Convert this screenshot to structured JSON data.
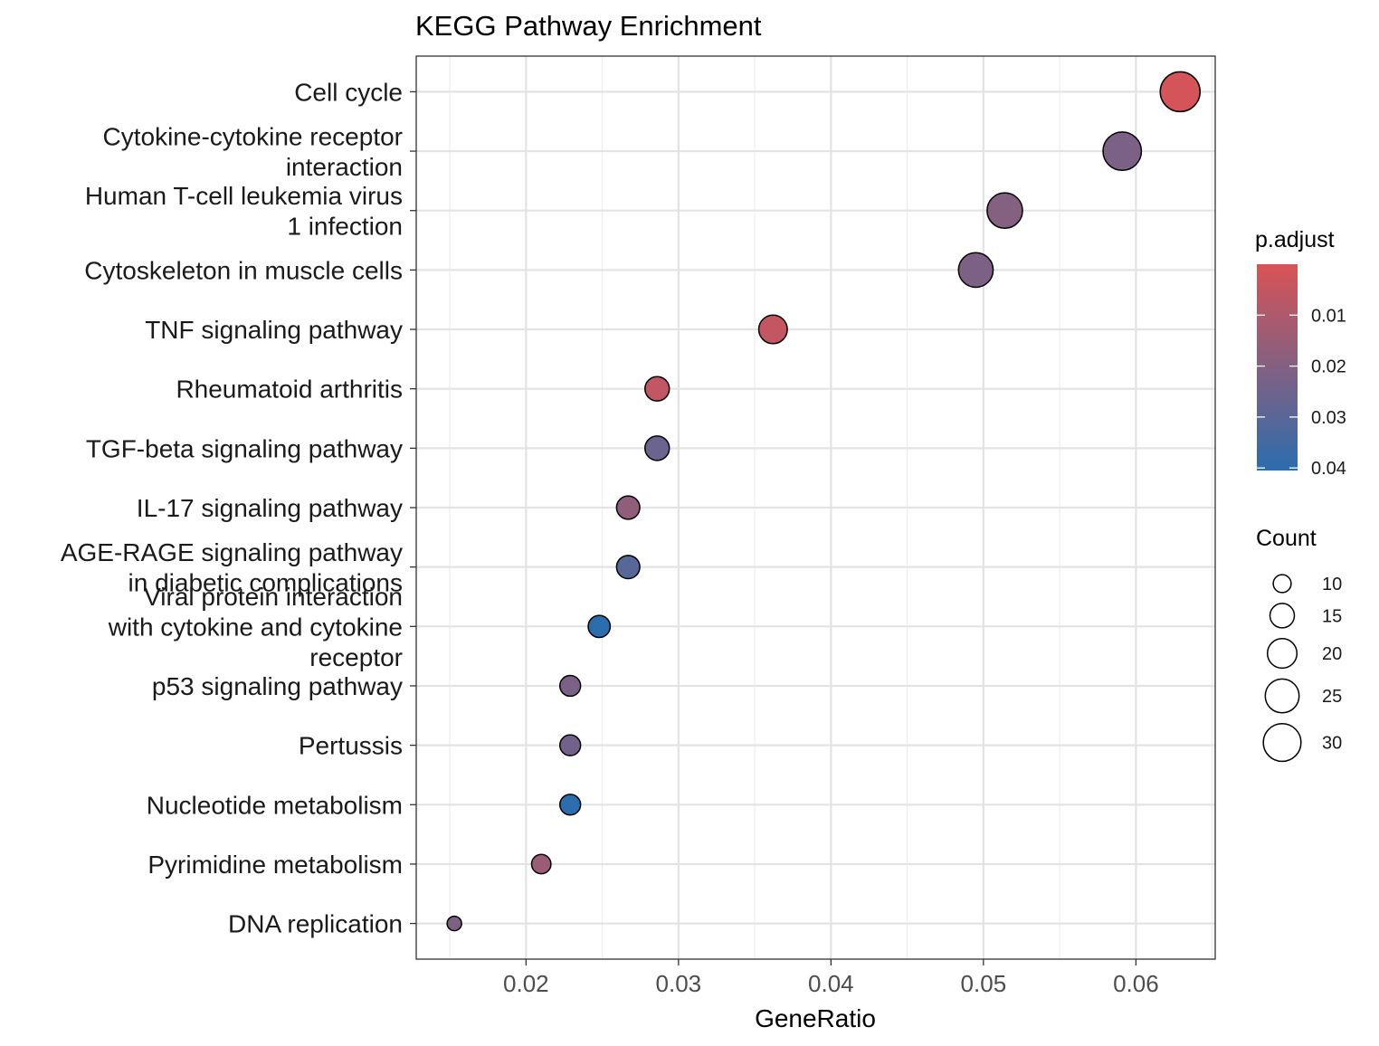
{
  "chart_data": {
    "type": "scatter",
    "title": "KEGG Pathway Enrichment",
    "xlabel": "GeneRatio",
    "ylabel": "",
    "xlim": [
      0.0128,
      0.0652
    ],
    "xticks": [
      0.02,
      0.03,
      0.04,
      0.05,
      0.06
    ],
    "xtick_labels": [
      "0.02",
      "0.03",
      "0.04",
      "0.05",
      "0.06"
    ],
    "grid": true,
    "categories": [
      "Cell cycle",
      "Cytokine-cytokine receptor interaction",
      "Human T-cell leukemia virus 1 infection",
      "Cytoskeleton in muscle cells",
      "TNF signaling pathway",
      "Rheumatoid arthritis",
      "TGF-beta signaling pathway",
      "IL-17 signaling pathway",
      "AGE-RAGE signaling pathway in diabetic complications",
      "Viral protein interaction with cytokine and cytokine receptor",
      "p53 signaling pathway",
      "Pertussis",
      "Nucleotide metabolism",
      "Pyrimidine metabolism",
      "DNA replication"
    ],
    "category_label_lines": [
      [
        "Cell cycle"
      ],
      [
        "Cytokine-cytokine receptor",
        "interaction"
      ],
      [
        "Human T-cell leukemia virus",
        "1 infection"
      ],
      [
        "Cytoskeleton in muscle cells"
      ],
      [
        "TNF signaling pathway"
      ],
      [
        "Rheumatoid arthritis"
      ],
      [
        "TGF-beta signaling pathway"
      ],
      [
        "IL-17 signaling pathway"
      ],
      [
        "AGE-RAGE signaling pathway",
        "in diabetic complications"
      ],
      [
        "Viral protein interaction",
        "with cytokine and cytokine",
        "receptor"
      ],
      [
        "p53 signaling pathway"
      ],
      [
        "Pertussis"
      ],
      [
        "Nucleotide metabolism"
      ],
      [
        "Pyrimidine metabolism"
      ],
      [
        "DNA replication"
      ]
    ],
    "gene_ratio": [
      0.0629,
      0.0591,
      0.0514,
      0.0495,
      0.0362,
      0.0286,
      0.0286,
      0.0267,
      0.0267,
      0.0248,
      0.0229,
      0.0229,
      0.0229,
      0.021,
      0.0153
    ],
    "count": [
      33,
      31,
      27,
      26,
      19,
      15,
      15,
      14,
      14,
      13,
      12,
      12,
      12,
      11,
      8
    ],
    "p_adjust": [
      0.0012,
      0.022,
      0.0198,
      0.0215,
      0.005,
      0.0058,
      0.026,
      0.017,
      0.0305,
      0.042,
      0.022,
      0.024,
      0.041,
      0.0145,
      0.0215
    ],
    "color_legend": {
      "title": "p.adjust",
      "ticks": [
        0.01,
        0.02,
        0.03,
        0.04
      ],
      "tick_labels": [
        "0.01",
        "0.02",
        "0.03",
        "0.04"
      ],
      "range": [
        0.0,
        0.0405
      ],
      "low_color": "#E41A1C",
      "high_color": "#377EB8",
      "low_color_rendered": "#D95356",
      "high_color_rendered": "#2C6DAE"
    },
    "size_legend": {
      "title": "Count",
      "values": [
        10,
        15,
        20,
        25,
        30
      ],
      "labels": [
        "10",
        "15",
        "20",
        "25",
        "30"
      ]
    }
  }
}
